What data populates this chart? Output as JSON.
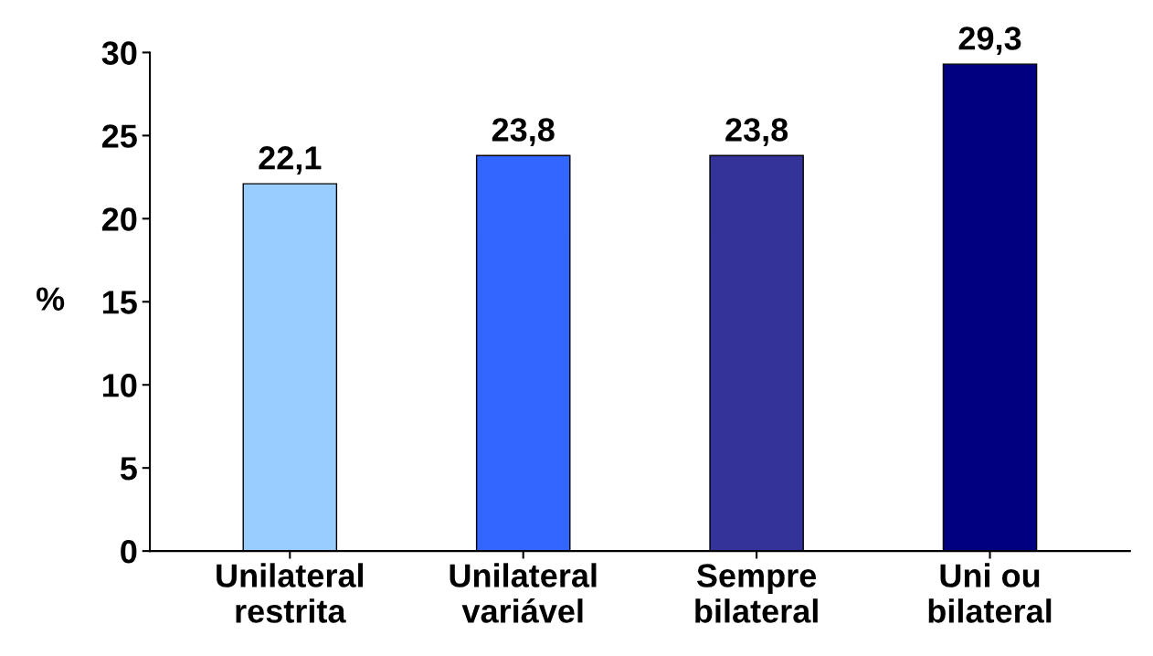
{
  "chart_data": {
    "type": "bar",
    "categories": [
      "Unilateral\nrestrita",
      "Unilateral\nvariável",
      "Sempre\nbilateral",
      "Uni ou\nbilateral"
    ],
    "values": [
      22.1,
      23.8,
      23.8,
      29.3
    ],
    "colors": [
      "#99ccff",
      "#3366ff",
      "#333399",
      "#000080"
    ],
    "value_labels": [
      "22,1",
      "23,8",
      "23,8",
      "29,3"
    ],
    "ylabel": "%",
    "ylim": [
      0,
      30
    ],
    "yticks": [
      0,
      5,
      10,
      15,
      20,
      25,
      30
    ],
    "grid": false,
    "legend": false
  }
}
